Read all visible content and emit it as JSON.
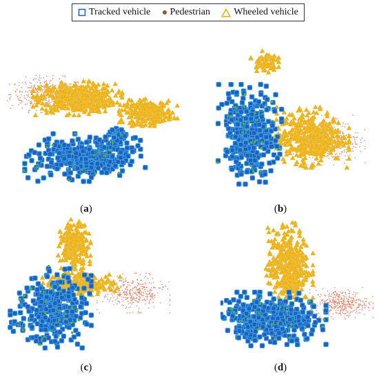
{
  "legend": [
    {
      "key": "tracked",
      "label": "Tracked vehicle",
      "marker": "square",
      "color": "#1f5fbf"
    },
    {
      "key": "pedestrian",
      "label": "Pedestrian",
      "marker": "dot",
      "color": "#8a5a2b"
    },
    {
      "key": "wheeled",
      "label": "Wheeled vehicle",
      "marker": "triangle",
      "color": "#f5b800"
    }
  ],
  "colors": {
    "tracked": "#1f5fbf",
    "tracked_edge": "#3aa0e0",
    "pedestrian": "#e07a5f",
    "wheeled": "#f5b000",
    "wheeled_edge": "#e2c25a",
    "overlap": "#5cae3a"
  },
  "chart_data": [
    {
      "type": "scatter",
      "panel_label": "a",
      "xlim": [
        0,
        100
      ],
      "ylim": [
        0,
        100
      ],
      "grid": false,
      "axes": false,
      "clusters": [
        {
          "series": "pedestrian",
          "cx": 22,
          "cy": 75,
          "rx": 20,
          "ry": 11,
          "n": 420
        },
        {
          "series": "wheeled",
          "cx": 38,
          "cy": 72,
          "rx": 20,
          "ry": 10,
          "n": 480
        },
        {
          "series": "wheeled",
          "cx": 76,
          "cy": 62,
          "rx": 13,
          "ry": 8,
          "n": 250
        },
        {
          "series": "tracked",
          "cx": 42,
          "cy": 30,
          "rx": 27,
          "ry": 14,
          "n": 320
        },
        {
          "series": "tracked",
          "cx": 59,
          "cy": 45,
          "rx": 5,
          "ry": 5,
          "n": 60
        }
      ]
    },
    {
      "type": "scatter",
      "panel_label": "b",
      "xlim": [
        0,
        100
      ],
      "ylim": [
        0,
        100
      ],
      "grid": false,
      "axes": false,
      "clusters": [
        {
          "series": "pedestrian",
          "cx": 72,
          "cy": 38,
          "rx": 18,
          "ry": 14,
          "n": 420
        },
        {
          "series": "wheeled",
          "cx": 60,
          "cy": 40,
          "rx": 20,
          "ry": 17,
          "n": 450
        },
        {
          "series": "wheeled",
          "cx": 33,
          "cy": 91,
          "rx": 7,
          "ry": 6,
          "n": 70
        },
        {
          "series": "tracked",
          "cx": 24,
          "cy": 42,
          "rx": 16,
          "ry": 28,
          "n": 360
        }
      ]
    },
    {
      "type": "scatter",
      "panel_label": "c",
      "xlim": [
        0,
        100
      ],
      "ylim": [
        0,
        100
      ],
      "grid": false,
      "axes": false,
      "clusters": [
        {
          "series": "wheeled",
          "cx": 42,
          "cy": 78,
          "rx": 8,
          "ry": 17,
          "n": 240
        },
        {
          "series": "wheeled",
          "cx": 45,
          "cy": 52,
          "rx": 20,
          "ry": 7,
          "n": 220
        },
        {
          "series": "pedestrian",
          "cx": 77,
          "cy": 45,
          "rx": 18,
          "ry": 12,
          "n": 340
        },
        {
          "series": "tracked",
          "cx": 28,
          "cy": 34,
          "rx": 20,
          "ry": 24,
          "n": 330
        }
      ]
    },
    {
      "type": "scatter",
      "panel_label": "d",
      "xlim": [
        0,
        100
      ],
      "ylim": [
        0,
        100
      ],
      "grid": false,
      "axes": false,
      "clusters": [
        {
          "series": "wheeled",
          "cx": 44,
          "cy": 65,
          "rx": 13,
          "ry": 28,
          "n": 420
        },
        {
          "series": "pedestrian",
          "cx": 78,
          "cy": 37,
          "rx": 17,
          "ry": 10,
          "n": 360
        },
        {
          "series": "tracked",
          "cx": 32,
          "cy": 25,
          "rx": 30,
          "ry": 17,
          "n": 380
        }
      ]
    }
  ]
}
